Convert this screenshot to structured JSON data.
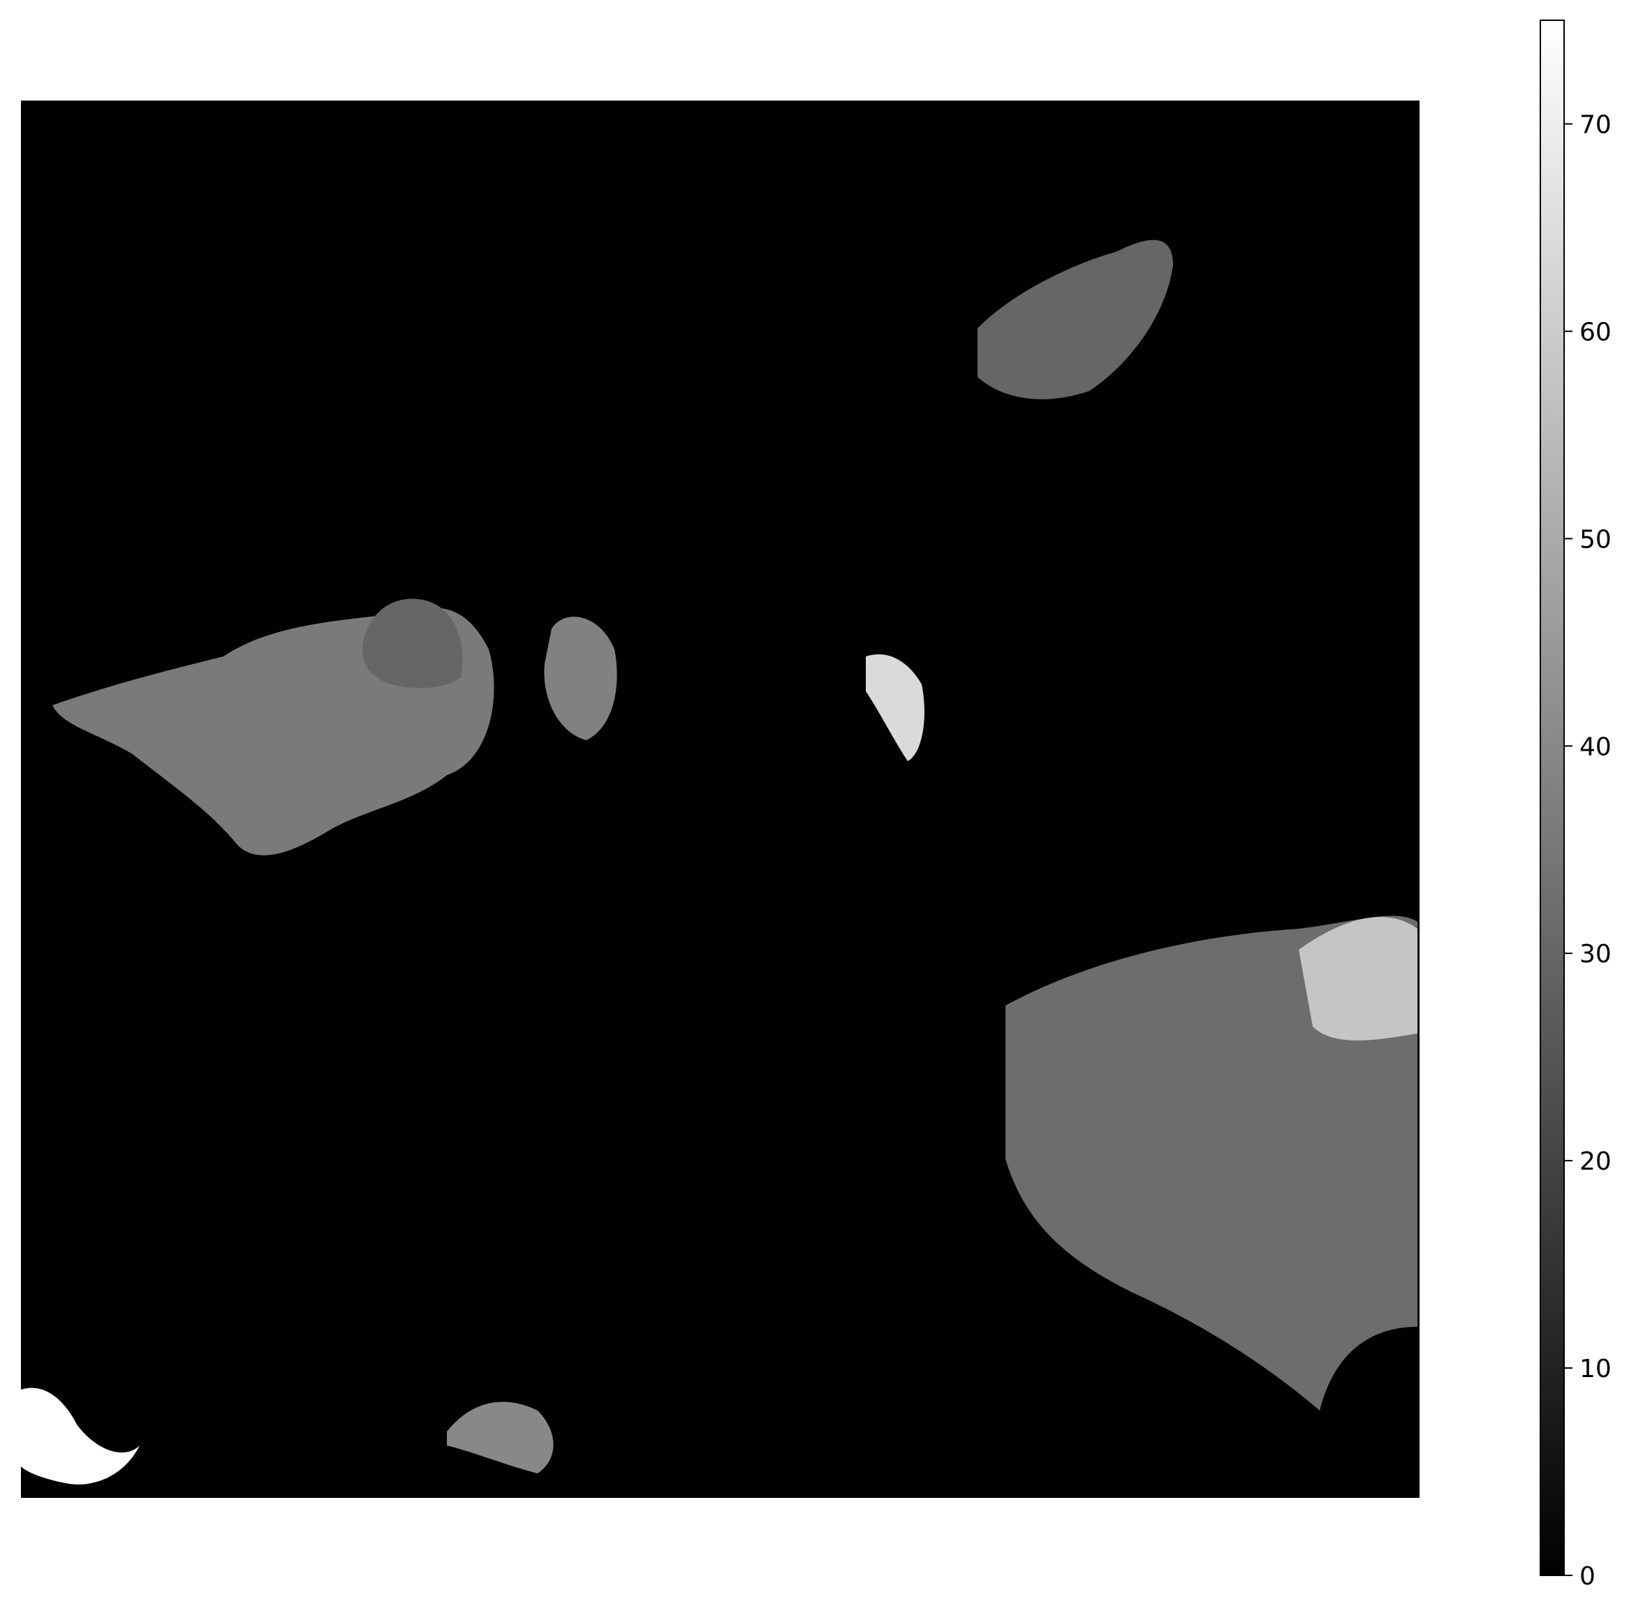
{
  "chart_data": {
    "type": "heatmap",
    "title": "",
    "xlabel": "",
    "ylabel": "",
    "axes_visible": false,
    "colormap": "gray",
    "colormap_start": "#000000",
    "colormap_end": "#ffffff",
    "colorbar": {
      "range": [
        0,
        75
      ],
      "ticks": [
        0,
        10,
        20,
        30,
        40,
        50,
        60,
        70
      ],
      "tick_labels": [
        "0",
        "10",
        "20",
        "30",
        "40",
        "50",
        "60",
        "70"
      ],
      "placement": "right"
    },
    "regions": [
      {
        "name": "left-center blob",
        "value": 36
      },
      {
        "name": "left-center blob upper lobe",
        "value": 30
      },
      {
        "name": "center-left blob",
        "value": 38
      },
      {
        "name": "center bright crescent",
        "value": 64
      },
      {
        "name": "upper-right blob",
        "value": 30
      },
      {
        "name": "lower-right blob",
        "value": 32
      },
      {
        "name": "lower-right highlight",
        "value": 58
      },
      {
        "name": "bottom-left blob",
        "value": 75
      },
      {
        "name": "bottom-center blob",
        "value": 40
      }
    ]
  }
}
